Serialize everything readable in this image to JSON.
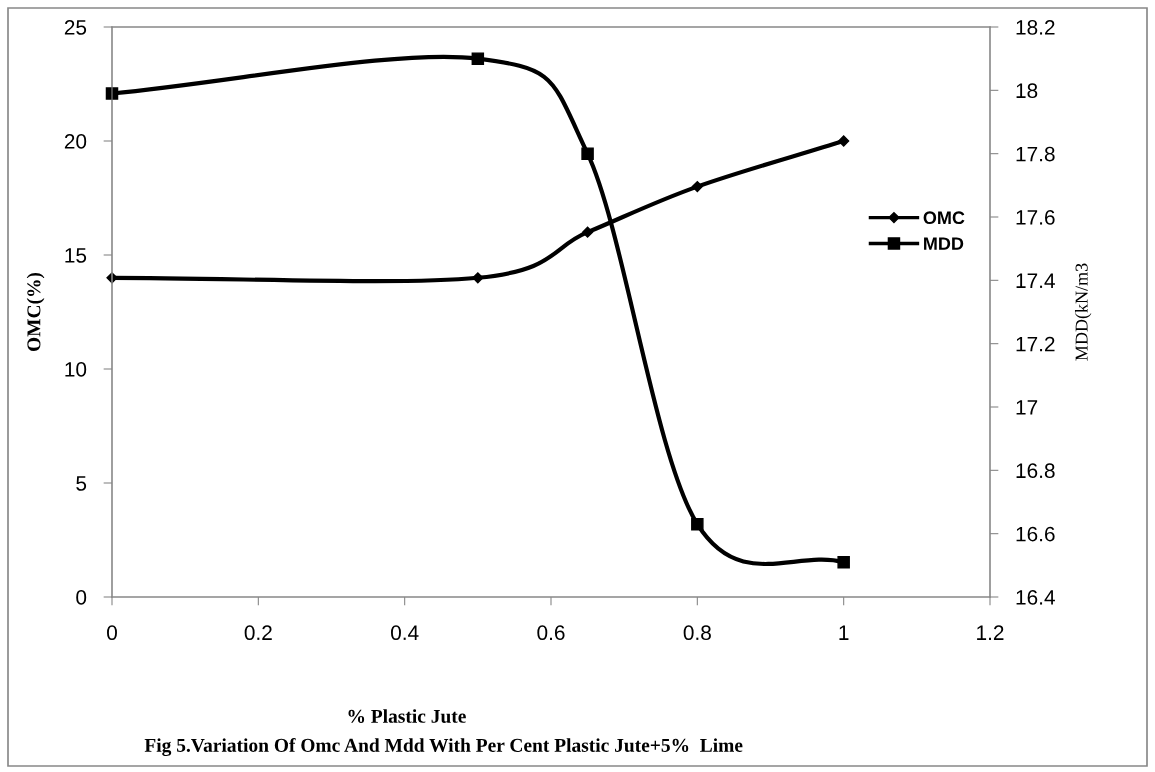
{
  "chart_data": {
    "type": "line",
    "xlabel": "% Plastic Jute",
    "ylabel": "OMC(%)",
    "y2label": "MDD(kN/m3",
    "annotations": [
      "Fig 5.Variation Of Omc And Mdd With Per Cent Plastic Jute+5%  Lime"
    ],
    "x": [
      0,
      0.5,
      0.65,
      0.8,
      1
    ],
    "series": [
      {
        "name": "OMC",
        "color": "#000000",
        "marker": "diamond",
        "values": [
          14,
          14,
          16,
          18,
          20
        ]
      },
      {
        "name": "MDD",
        "color": "#000000",
        "marker": "square",
        "axis": "y2",
        "values": [
          17.99,
          18.1,
          17.8,
          16.63,
          16.51
        ]
      }
    ],
    "xlim": [
      0,
      1.2
    ],
    "xticks": [
      0,
      0.2,
      0.4,
      0.6,
      0.8,
      1,
      1.2
    ],
    "ylim": [
      0,
      25
    ],
    "yticks": [
      0,
      5,
      10,
      15,
      20,
      25
    ],
    "y2lim": [
      16.4,
      18.2
    ],
    "y2ticks": [
      16.4,
      16.6,
      16.8,
      17,
      17.2,
      17.4,
      17.6,
      17.8,
      18,
      18.2
    ],
    "grid": false,
    "legend": "right",
    "line_style": "solid"
  }
}
